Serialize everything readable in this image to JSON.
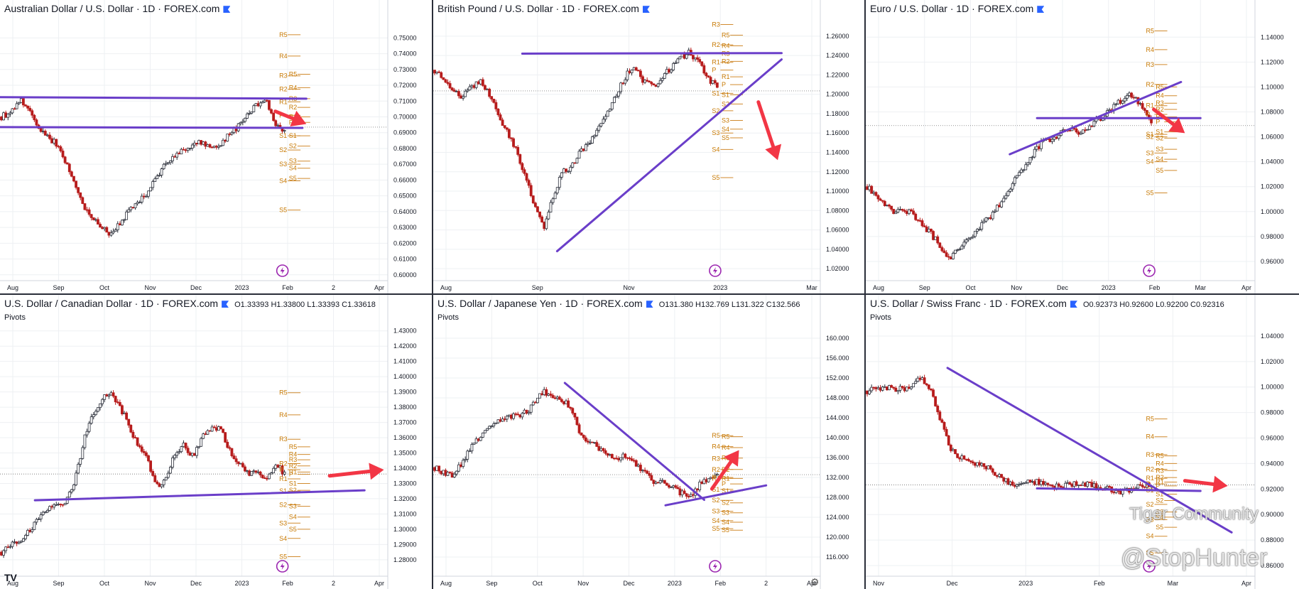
{
  "colors": {
    "up": "#2a2e39",
    "down": "#b71c1c",
    "trend": "#6a3ec9",
    "arrow": "#f23645",
    "pivot": "#d08a2e",
    "grid": "#eef0f3"
  },
  "icons": {
    "lightning": "lightning-icon",
    "gear": "gear-icon",
    "tv": "tradingview-logo"
  },
  "watermark": {
    "community": "Tiger Community",
    "user": "@StopHunter"
  },
  "tv_logo": "TV",
  "chart_data": [
    {
      "type": "candlestick",
      "title": "Australian Dollar / U.S. Dollar · 1D · FOREX.com",
      "ohlc": "",
      "pivots_label": "",
      "x_ticks": [
        "Aug",
        "Sep",
        "Oct",
        "Nov",
        "Dec",
        "2023",
        "Feb",
        "2",
        "Apr"
      ],
      "y_ticks": [
        "0.75000",
        "0.74000",
        "0.73000",
        "0.72000",
        "0.71000",
        "0.70000",
        "0.69000",
        "0.68000",
        "0.67000",
        "0.66000",
        "0.65000",
        "0.64000",
        "0.63000",
        "0.62000",
        "0.61000",
        "0.60000"
      ],
      "ylim": [
        0.599,
        0.756
      ],
      "path": [
        0.7,
        0.703,
        0.711,
        0.704,
        0.693,
        0.688,
        0.683,
        0.672,
        0.658,
        0.644,
        0.636,
        0.629,
        0.626,
        0.632,
        0.641,
        0.646,
        0.652,
        0.662,
        0.671,
        0.675,
        0.679,
        0.682,
        0.684,
        0.68,
        0.683,
        0.689,
        0.694,
        0.702,
        0.708,
        0.712,
        0.695,
        0.691
      ],
      "current": 0.6935,
      "pivots_main": [
        [
          "R5",
          0.752
        ],
        [
          "R4",
          0.7385
        ],
        [
          "R3",
          0.726
        ],
        [
          "R2",
          0.7175
        ],
        [
          "R1",
          0.7095
        ],
        [
          "P",
          0.701
        ],
        [
          "S1",
          0.688
        ],
        [
          "S2",
          0.679
        ],
        [
          "S3",
          0.67
        ],
        [
          "S4",
          0.6595
        ],
        [
          "S5",
          0.641
        ]
      ],
      "pivots_side": [
        [
          "R5",
          0.727
        ],
        [
          "R4",
          0.7185
        ],
        [
          "R3",
          0.7115
        ],
        [
          "R2",
          0.706
        ],
        [
          "R1",
          0.7
        ],
        [
          "P",
          0.6965
        ],
        [
          "S1",
          0.688
        ],
        [
          "S2",
          0.6815
        ],
        [
          "S3",
          0.672
        ],
        [
          "S4",
          0.6675
        ],
        [
          "S5",
          0.661
        ]
      ],
      "lines": [
        [
          [
            0.0,
            0.7125
          ],
          [
            0.79,
            0.7115
          ]
        ],
        [
          [
            0.0,
            0.6935
          ],
          [
            0.78,
            0.693
          ]
        ]
      ],
      "arrow": [
        [
          0.71,
          0.7035
        ],
        [
          0.79,
          0.6955
        ]
      ]
    },
    {
      "type": "candlestick",
      "title": "British Pound / U.S. Dollar · 1D · FOREX.com",
      "ohlc": "",
      "pivots_label": "",
      "x_ticks": [
        "Aug",
        "Sep",
        "Nov",
        "2023",
        "Mar"
      ],
      "y_ticks": [
        "1.26000",
        "1.24000",
        "1.22000",
        "1.20000",
        "1.18000",
        "1.16000",
        "1.14000",
        "1.12000",
        "1.10000",
        "1.08000",
        "1.06000",
        "1.04000",
        "1.02000"
      ],
      "ylim": [
        1.012,
        1.268
      ],
      "path": [
        1.225,
        1.218,
        1.205,
        1.198,
        1.206,
        1.215,
        1.2,
        1.178,
        1.16,
        1.14,
        1.115,
        1.085,
        1.06,
        1.095,
        1.12,
        1.125,
        1.142,
        1.15,
        1.165,
        1.182,
        1.2,
        1.22,
        1.23,
        1.212,
        1.208,
        1.218,
        1.228,
        1.238,
        1.243,
        1.233,
        1.215,
        1.208
      ],
      "current": 1.2035,
      "pivots_main": [
        [
          "R3",
          1.272
        ],
        [
          "R2",
          1.251
        ],
        [
          "R1",
          1.233
        ],
        [
          "P",
          1.225
        ],
        [
          "S1",
          1.201
        ],
        [
          "S2",
          1.183
        ],
        [
          "S3",
          1.16
        ],
        [
          "S4",
          1.143
        ],
        [
          "S5",
          1.114
        ]
      ],
      "pivots_side": [
        [
          "R5",
          1.261
        ],
        [
          "R4",
          1.25
        ],
        [
          "R3",
          1.242
        ],
        [
          "R2",
          1.234
        ],
        [
          "R1",
          1.218
        ],
        [
          "P",
          1.21
        ],
        [
          "S1",
          1.1995
        ],
        [
          "S2",
          1.19
        ],
        [
          "S3",
          1.173
        ],
        [
          "S4",
          1.164
        ],
        [
          "S5",
          1.155
        ]
      ],
      "lines": [
        [
          [
            0.23,
            1.242
          ],
          [
            0.9,
            1.2425
          ]
        ],
        [
          [
            0.32,
            1.038
          ],
          [
            0.9,
            1.236
          ]
        ]
      ],
      "arrow": [
        [
          0.84,
          1.192
        ],
        [
          0.89,
          1.132
        ]
      ]
    },
    {
      "type": "candlestick",
      "title": "Euro / U.S. Dollar · 1D · FOREX.com",
      "ohlc": "",
      "pivots_label": "",
      "x_ticks": [
        "Aug",
        "Sep",
        "Oct",
        "Nov",
        "Dec",
        "2023",
        "Feb",
        "Mar",
        "Apr"
      ],
      "y_ticks": [
        "1.14000",
        "1.12000",
        "1.10000",
        "1.08000",
        "1.06000",
        "1.04000",
        "1.02000",
        "1.00000",
        "0.98000",
        "0.96000"
      ],
      "ylim": [
        0.948,
        1.147
      ],
      "path": [
        1.02,
        1.012,
        1.005,
        0.998,
        1.002,
        0.998,
        0.99,
        0.982,
        0.972,
        0.962,
        0.97,
        0.978,
        0.985,
        0.993,
        1.001,
        1.012,
        1.025,
        1.035,
        1.045,
        1.055,
        1.058,
        1.062,
        1.066,
        1.063,
        1.067,
        1.073,
        1.078,
        1.085,
        1.091,
        1.094,
        1.083,
        1.073
      ],
      "current": 1.069,
      "pivots_main": [
        [
          "R5",
          1.145
        ],
        [
          "R4",
          1.13
        ],
        [
          "R3",
          1.118
        ],
        [
          "R2",
          1.102
        ],
        [
          "R1",
          1.085
        ],
        [
          "P",
          1.078
        ],
        [
          "S1",
          1.062
        ],
        [
          "S2",
          1.06
        ],
        [
          "S3",
          1.047
        ],
        [
          "S4",
          1.04
        ],
        [
          "S5",
          1.015
        ]
      ],
      "pivots_side": [
        [
          "R5",
          1.1
        ],
        [
          "R4",
          1.093
        ],
        [
          "R3",
          1.087
        ],
        [
          "R2",
          1.082
        ],
        [
          "R1",
          1.076
        ],
        [
          "P",
          1.072
        ],
        [
          "S1",
          1.064
        ],
        [
          "S2",
          1.059
        ],
        [
          "S3",
          1.05
        ],
        [
          "S4",
          1.042
        ],
        [
          "S5",
          1.033
        ]
      ],
      "lines": [
        [
          [
            0.44,
            1.075
          ],
          [
            0.86,
            1.075
          ]
        ],
        [
          [
            0.37,
            1.046
          ],
          [
            0.81,
            1.104
          ]
        ]
      ],
      "arrow": [
        [
          0.74,
          1.082
        ],
        [
          0.82,
          1.063
        ]
      ]
    },
    {
      "type": "candlestick",
      "title": "U.S. Dollar / Canadian Dollar · 1D · FOREX.com",
      "ohlc": "O1.33393 H1.33800 L1.33393 C1.33618",
      "pivots_label": "Pivots",
      "x_ticks": [
        "Aug",
        "Sep",
        "Oct",
        "Nov",
        "Dec",
        "2023",
        "Feb",
        "2",
        "Apr"
      ],
      "y_ticks": [
        "1.43000",
        "1.42000",
        "1.41000",
        "1.40000",
        "1.39000",
        "1.38000",
        "1.37000",
        "1.36000",
        "1.35000",
        "1.34000",
        "1.33000",
        "1.32000",
        "1.31000",
        "1.30000",
        "1.29000",
        "1.28000"
      ],
      "ylim": [
        1.272,
        1.435
      ],
      "path": [
        1.285,
        1.29,
        1.292,
        1.299,
        1.306,
        1.312,
        1.317,
        1.318,
        1.33,
        1.358,
        1.375,
        1.385,
        1.389,
        1.38,
        1.368,
        1.354,
        1.345,
        1.328,
        1.333,
        1.35,
        1.355,
        1.348,
        1.361,
        1.367,
        1.365,
        1.352,
        1.343,
        1.336,
        1.338,
        1.332,
        1.344,
        1.336
      ],
      "current": 1.3362,
      "pivots_main": [
        [
          "R5",
          1.3895
        ],
        [
          "R4",
          1.375
        ],
        [
          "R3",
          1.359
        ],
        [
          "R2",
          1.343
        ],
        [
          "R1",
          1.333
        ],
        [
          "P",
          1.339
        ],
        [
          "S1",
          1.325
        ],
        [
          "S2",
          1.316
        ],
        [
          "S3",
          1.304
        ],
        [
          "S4",
          1.294
        ],
        [
          "S5",
          1.282
        ]
      ],
      "pivots_side": [
        [
          "R5",
          1.354
        ],
        [
          "R4",
          1.349
        ],
        [
          "R3",
          1.3455
        ],
        [
          "R2",
          1.3415
        ],
        [
          "R1",
          1.3375
        ],
        [
          "P",
          1.336
        ],
        [
          "S1",
          1.33
        ],
        [
          "S2",
          1.3255
        ],
        [
          "S3",
          1.315
        ],
        [
          "S4",
          1.308
        ],
        [
          "S5",
          1.3
        ]
      ],
      "lines": [
        [
          [
            0.09,
            1.319
          ],
          [
            0.94,
            1.3255
          ]
        ]
      ],
      "arrow": [
        [
          0.85,
          1.335
        ],
        [
          0.99,
          1.339
        ]
      ]
    },
    {
      "type": "candlestick",
      "title": "U.S. Dollar / Japanese Yen · 1D · FOREX.com",
      "ohlc": "O131.380 H132.769 L131.322 C132.566",
      "pivots_label": "Pivots",
      "x_ticks": [
        "Aug",
        "Sep",
        "Oct",
        "Nov",
        "Dec",
        "2023",
        "Feb",
        "2",
        "Apr"
      ],
      "y_ticks": [
        "160.000",
        "156.000",
        "152.000",
        "148.000",
        "144.000",
        "140.000",
        "136.000",
        "132.000",
        "128.000",
        "124.000",
        "120.000",
        "116.000"
      ],
      "ylim": [
        113.0,
        163.0
      ],
      "path": [
        134.0,
        133.0,
        132.0,
        135.0,
        138.0,
        140.0,
        142.5,
        143.5,
        144.0,
        144.5,
        145.0,
        147.0,
        149.5,
        148.0,
        147.5,
        146.0,
        140.0,
        139.0,
        138.0,
        136.5,
        135.5,
        136.5,
        135.0,
        133.0,
        131.0,
        131.5,
        130.0,
        129.0,
        128.0,
        130.5,
        131.5,
        132.5
      ],
      "current": 132.56,
      "pivots_main": [
        [
          "R5",
          140.4
        ],
        [
          "R4",
          138.2
        ],
        [
          "R3",
          135.8
        ],
        [
          "R2",
          133.6
        ],
        [
          "R1",
          131.8
        ],
        [
          "P",
          132.0
        ],
        [
          "S1",
          129.6
        ],
        [
          "S2",
          127.4
        ],
        [
          "S3",
          125.2
        ],
        [
          "S4",
          123.3
        ],
        [
          "S5",
          121.7
        ]
      ],
      "pivots_side": [
        [
          "R5",
          140.2
        ],
        [
          "R4",
          138.0
        ],
        [
          "R3",
          135.9
        ],
        [
          "R2",
          133.6
        ],
        [
          "R1",
          131.8
        ],
        [
          "P",
          130.7
        ],
        [
          "S1",
          129.3
        ],
        [
          "S2",
          126.9
        ],
        [
          "S3",
          124.9
        ],
        [
          "S4",
          123.0
        ],
        [
          "S5",
          121.4
        ]
      ],
      "lines": [
        [
          [
            0.34,
            151.0
          ],
          [
            0.7,
            127.5
          ]
        ],
        [
          [
            0.6,
            126.4
          ],
          [
            0.86,
            130.4
          ]
        ]
      ],
      "arrow": [
        [
          0.72,
          129.7
        ],
        [
          0.79,
          137.5
        ]
      ]
    },
    {
      "type": "candlestick",
      "title": "U.S. Dollar / Swiss Franc · 1D · FOREX.com",
      "ohlc": "O0.92373 H0.92600 L0.92200 C0.92316",
      "pivots_label": "Pivots",
      "x_ticks": [
        "Nov",
        "Dec",
        "2023",
        "Feb",
        "Mar",
        "Apr"
      ],
      "y_ticks": [
        "1.04000",
        "1.02000",
        "1.00000",
        "0.98000",
        "0.96000",
        "0.94000",
        "0.92000",
        "0.90000",
        "0.88000",
        "0.86000"
      ],
      "ylim": [
        0.855,
        1.05
      ],
      "path": [
        0.997,
        0.999,
        1.0,
        0.999,
        0.998,
        1.003,
        1.008,
        0.995,
        0.975,
        0.953,
        0.945,
        0.943,
        0.94,
        0.937,
        0.932,
        0.927,
        0.924,
        0.925,
        0.926,
        0.925,
        0.923,
        0.922,
        0.924,
        0.925,
        0.924,
        0.922,
        0.92,
        0.919,
        0.918,
        0.921,
        0.923,
        0.923
      ],
      "current": 0.9232,
      "pivots_main": [
        [
          "R5",
          0.975
        ],
        [
          "R4",
          0.961
        ],
        [
          "R3",
          0.947
        ],
        [
          "R2",
          0.9355
        ],
        [
          "R1",
          0.9285
        ],
        [
          "P",
          0.924
        ],
        [
          "S1",
          0.919
        ],
        [
          "S2",
          0.908
        ],
        [
          "S3",
          0.896
        ],
        [
          "S4",
          0.883
        ],
        [
          "S5",
          0.87
        ]
      ],
      "pivots_side": [
        [
          "R5",
          0.946
        ],
        [
          "R4",
          0.94
        ],
        [
          "R3",
          0.9345
        ],
        [
          "R2",
          0.929
        ],
        [
          "R1",
          0.9255
        ],
        [
          "P",
          0.9225
        ],
        [
          "S1",
          0.916
        ],
        [
          "S2",
          0.911
        ],
        [
          "S3",
          0.902
        ],
        [
          "S4",
          0.898
        ],
        [
          "S5",
          0.89
        ]
      ],
      "lines": [
        [
          [
            0.21,
            1.015
          ],
          [
            0.94,
            0.886
          ]
        ],
        [
          [
            0.44,
            0.9205
          ],
          [
            0.86,
            0.9185
          ]
        ]
      ],
      "arrow": [
        [
          0.82,
          0.9265
        ],
        [
          0.93,
          0.9225
        ]
      ]
    }
  ]
}
